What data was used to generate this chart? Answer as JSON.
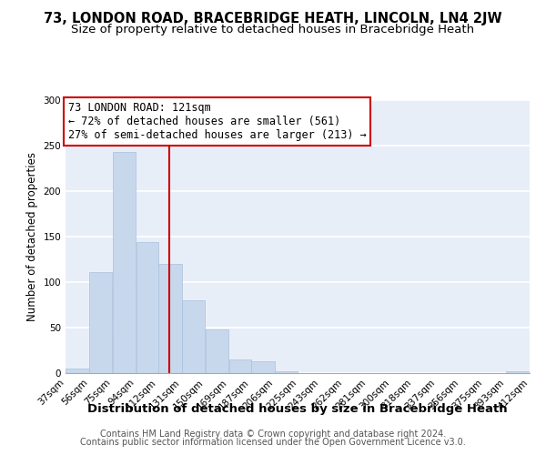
{
  "title": "73, LONDON ROAD, BRACEBRIDGE HEATH, LINCOLN, LN4 2JW",
  "subtitle": "Size of property relative to detached houses in Bracebridge Heath",
  "xlabel": "Distribution of detached houses by size in Bracebridge Heath",
  "ylabel": "Number of detached properties",
  "bar_edges": [
    37,
    56,
    75,
    94,
    112,
    131,
    150,
    169,
    187,
    206,
    225,
    243,
    262,
    281,
    300,
    318,
    337,
    356,
    375,
    393,
    412
  ],
  "bar_heights": [
    5,
    111,
    243,
    144,
    120,
    80,
    48,
    15,
    13,
    2,
    0,
    0,
    0,
    0,
    0,
    0,
    0,
    0,
    0,
    2
  ],
  "bar_color": "#c8d8ec",
  "bar_edge_color": "#a8c0dc",
  "vline_x": 121,
  "vline_color": "#cc0000",
  "annotation_line1": "73 LONDON ROAD: 121sqm",
  "annotation_line2": "← 72% of detached houses are smaller (561)",
  "annotation_line3": "27% of semi-detached houses are larger (213) →",
  "annotation_box_color": "#ffffff",
  "annotation_box_edge": "#cc0000",
  "ylim": [
    0,
    300
  ],
  "yticks": [
    0,
    50,
    100,
    150,
    200,
    250,
    300
  ],
  "footnote1": "Contains HM Land Registry data © Crown copyright and database right 2024.",
  "footnote2": "Contains public sector information licensed under the Open Government Licence v3.0.",
  "bg_color": "#ffffff",
  "plot_bg_color": "#e8eef8",
  "grid_color": "#ffffff",
  "title_fontsize": 10.5,
  "subtitle_fontsize": 9.5,
  "xlabel_fontsize": 9.5,
  "ylabel_fontsize": 8.5,
  "tick_label_fontsize": 7.5,
  "annotation_fontsize": 8.5,
  "footnote_fontsize": 7.0
}
